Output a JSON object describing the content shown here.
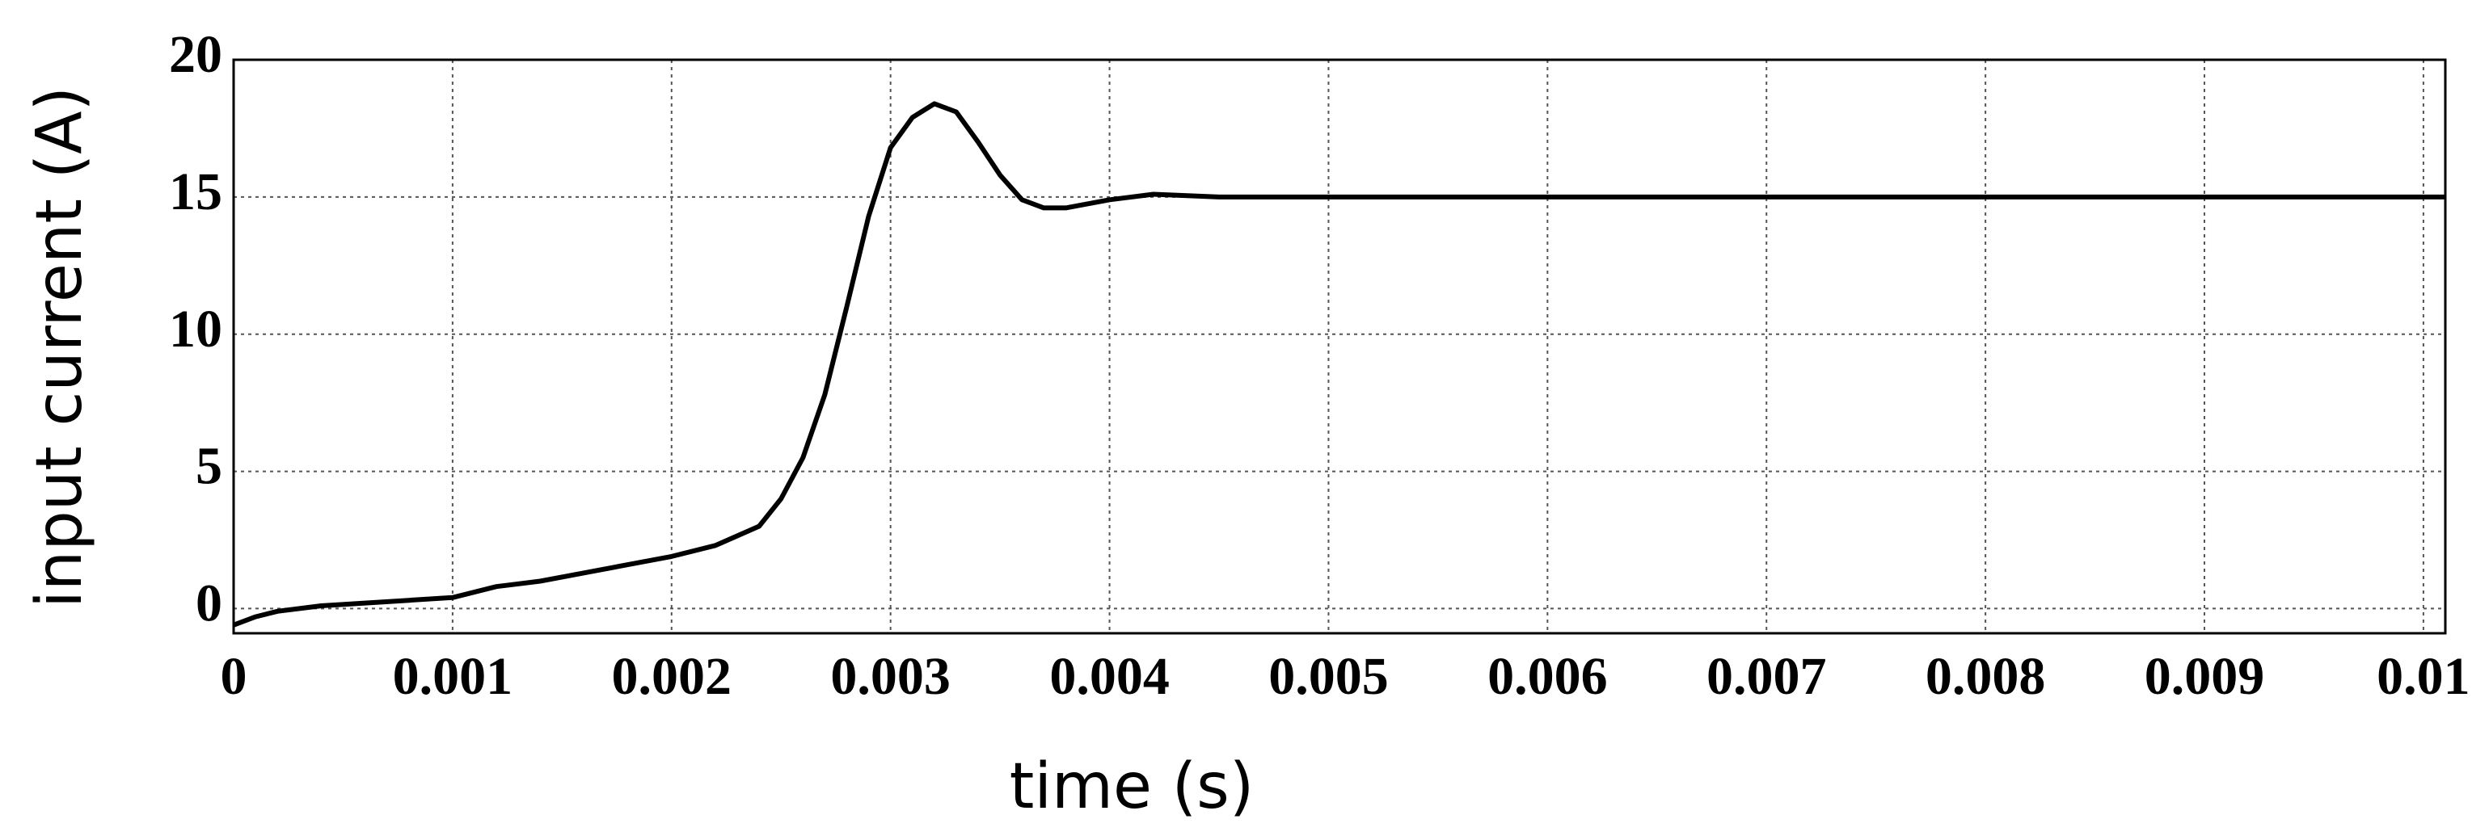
{
  "chart_data": {
    "type": "line",
    "x_label": "time (s)",
    "y_label": "input current (A)",
    "x": [
      0,
      0.0001,
      0.0002,
      0.0004,
      0.0006,
      0.0008,
      0.001,
      0.0012,
      0.0014,
      0.0016,
      0.0018,
      0.002,
      0.0022,
      0.0024,
      0.0025,
      0.0026,
      0.0027,
      0.0028,
      0.0029,
      0.003,
      0.0031,
      0.0032,
      0.0033,
      0.0034,
      0.0035,
      0.0036,
      0.0037,
      0.0038,
      0.004,
      0.0042,
      0.0045,
      0.005,
      0.006,
      0.007,
      0.008,
      0.009,
      0.0101
    ],
    "values": [
      -0.6,
      -0.3,
      -0.1,
      0.1,
      0.2,
      0.3,
      0.4,
      0.8,
      1.0,
      1.3,
      1.6,
      1.9,
      2.3,
      3.0,
      4.0,
      5.5,
      7.8,
      11,
      14.3,
      16.8,
      17.9,
      18.4,
      18.1,
      17,
      15.8,
      14.9,
      14.6,
      14.6,
      14.9,
      15.1,
      15.0,
      15.0,
      15.0,
      15.0,
      15.0,
      15.0,
      15.0
    ],
    "color": "#000000",
    "xlim": [
      0,
      0.0101
    ],
    "xticks": [
      0,
      0.001,
      0.002,
      0.003,
      0.004,
      0.005,
      0.006,
      0.007,
      0.008,
      0.009,
      0.01
    ],
    "ylim": [
      -0.9,
      20
    ],
    "yticks": [
      0,
      5,
      10,
      15,
      20
    ],
    "grid": true
  }
}
